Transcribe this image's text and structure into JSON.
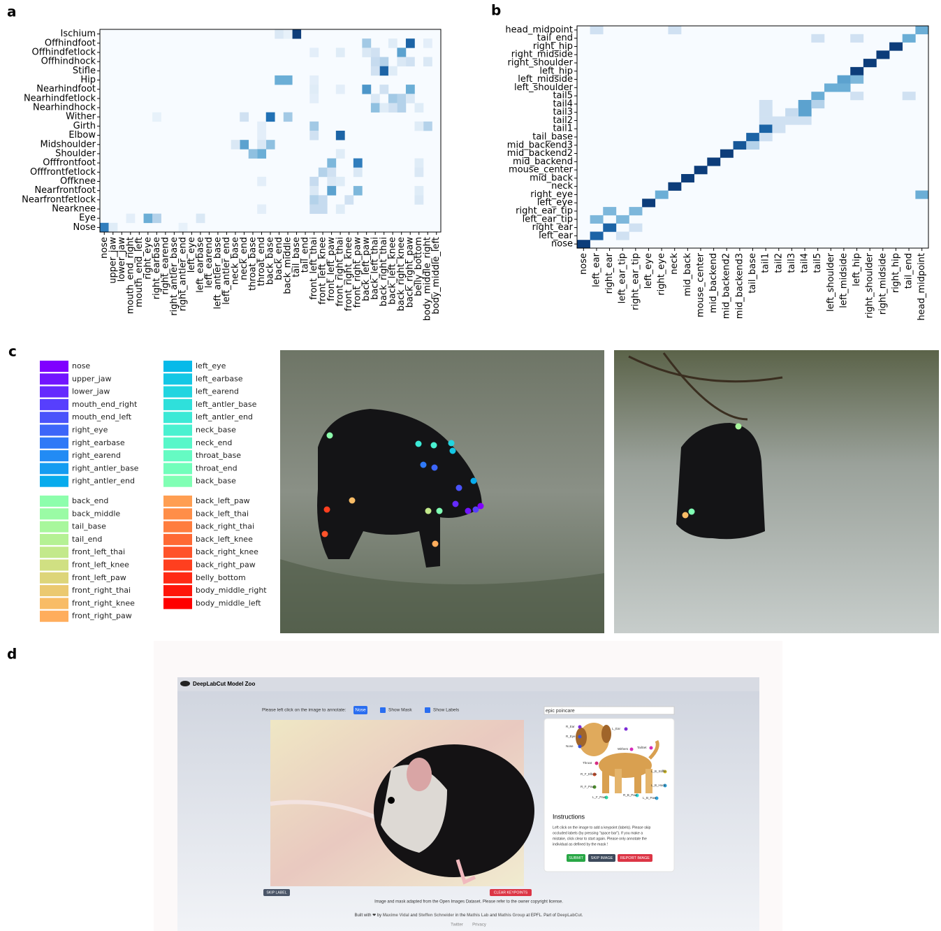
{
  "panel_labels": [
    "a",
    "b",
    "c",
    "d"
  ],
  "chart_data": [
    {
      "type": "heatmap",
      "rows": [
        "Ischium",
        "Offhindfoot",
        "Offhindfetlock",
        "Offhindhock",
        "Stifle",
        "Hip",
        "Nearhindfoot",
        "Nearhindfetlock",
        "Nearhindhock",
        "Wither",
        "Girth",
        "Elbow",
        "Midshoulder",
        "Shoulder",
        "Offfrontfoot",
        "Offfrontfetlock",
        "Offknee",
        "Nearfrontfoot",
        "Nearfrontfetlock",
        "Nearknee",
        "Eye",
        "Nose"
      ],
      "columns": [
        "nose",
        "upper_jaw",
        "lower_jaw",
        "mouth_end_right",
        "mouth_end_left",
        "right_eye",
        "right_earbase",
        "right_earend",
        "right_antler_base",
        "right_antler_end",
        "left_eye",
        "left_earbase",
        "left_earend",
        "left_antler_base",
        "left_antler_end",
        "neck_base",
        "neck_end",
        "throat_base",
        "throat_end",
        "back_base",
        "back_end",
        "back_middle",
        "tail_base",
        "tail_end",
        "front_left_thai",
        "front_left_knee",
        "front_left_paw",
        "front_right_thai",
        "front_right_knee",
        "front_right_paw",
        "back_left_paw",
        "back_left_thai",
        "back_right_thai",
        "back_left_knee",
        "back_right_knee",
        "back_right_paw",
        "belly_bottom",
        "body_middle_right",
        "body_middle_left"
      ],
      "vlim": [
        0,
        1
      ],
      "colormap": [
        "#f7fbff",
        "#c6dbef",
        "#6baed6",
        "#2171b5",
        "#08306b"
      ],
      "cells": [
        [
          0,
          22,
          0.95
        ],
        [
          0,
          20,
          0.15
        ],
        [
          0,
          21,
          0.08
        ],
        [
          1,
          35,
          0.8
        ],
        [
          1,
          30,
          0.35
        ],
        [
          1,
          33,
          0.12
        ],
        [
          1,
          37,
          0.1
        ],
        [
          2,
          34,
          0.55
        ],
        [
          2,
          31,
          0.2
        ],
        [
          2,
          30,
          0.15
        ],
        [
          2,
          27,
          0.12
        ],
        [
          2,
          24,
          0.1
        ],
        [
          3,
          32,
          0.3
        ],
        [
          3,
          31,
          0.25
        ],
        [
          3,
          35,
          0.2
        ],
        [
          3,
          34,
          0.15
        ],
        [
          3,
          37,
          0.15
        ],
        [
          4,
          32,
          0.8
        ],
        [
          4,
          31,
          0.2
        ],
        [
          4,
          33,
          0.12
        ],
        [
          5,
          20,
          0.5
        ],
        [
          5,
          21,
          0.5
        ],
        [
          5,
          24,
          0.1
        ],
        [
          6,
          30,
          0.6
        ],
        [
          6,
          35,
          0.5
        ],
        [
          6,
          32,
          0.2
        ],
        [
          6,
          24,
          0.12
        ],
        [
          6,
          27,
          0.1
        ],
        [
          7,
          33,
          0.35
        ],
        [
          7,
          34,
          0.3
        ],
        [
          7,
          31,
          0.15
        ],
        [
          7,
          35,
          0.15
        ],
        [
          7,
          24,
          0.1
        ],
        [
          8,
          31,
          0.4
        ],
        [
          8,
          34,
          0.3
        ],
        [
          8,
          33,
          0.2
        ],
        [
          8,
          32,
          0.12
        ],
        [
          8,
          36,
          0.12
        ],
        [
          9,
          19,
          0.75
        ],
        [
          9,
          21,
          0.35
        ],
        [
          9,
          16,
          0.2
        ],
        [
          9,
          6,
          0.08
        ],
        [
          10,
          24,
          0.35
        ],
        [
          10,
          37,
          0.3
        ],
        [
          10,
          36,
          0.12
        ],
        [
          10,
          18,
          0.1
        ],
        [
          11,
          27,
          0.8
        ],
        [
          11,
          24,
          0.2
        ],
        [
          11,
          18,
          0.1
        ],
        [
          12,
          16,
          0.55
        ],
        [
          12,
          19,
          0.4
        ],
        [
          12,
          15,
          0.15
        ],
        [
          12,
          18,
          0.15
        ],
        [
          13,
          18,
          0.5
        ],
        [
          13,
          17,
          0.4
        ],
        [
          13,
          27,
          0.12
        ],
        [
          14,
          29,
          0.7
        ],
        [
          14,
          26,
          0.45
        ],
        [
          14,
          36,
          0.12
        ],
        [
          15,
          25,
          0.3
        ],
        [
          15,
          26,
          0.2
        ],
        [
          15,
          29,
          0.15
        ],
        [
          15,
          36,
          0.15
        ],
        [
          16,
          24,
          0.25
        ],
        [
          16,
          26,
          0.15
        ],
        [
          16,
          27,
          0.12
        ],
        [
          16,
          18,
          0.1
        ],
        [
          17,
          26,
          0.55
        ],
        [
          17,
          29,
          0.45
        ],
        [
          17,
          36,
          0.12
        ],
        [
          17,
          24,
          0.15
        ],
        [
          18,
          24,
          0.3
        ],
        [
          18,
          25,
          0.25
        ],
        [
          18,
          28,
          0.2
        ],
        [
          18,
          36,
          0.15
        ],
        [
          19,
          24,
          0.25
        ],
        [
          19,
          25,
          0.25
        ],
        [
          19,
          27,
          0.12
        ],
        [
          19,
          18,
          0.1
        ],
        [
          20,
          5,
          0.5
        ],
        [
          20,
          6,
          0.3
        ],
        [
          20,
          11,
          0.15
        ],
        [
          20,
          3,
          0.1
        ],
        [
          21,
          0,
          0.7
        ],
        [
          21,
          1,
          0.12
        ],
        [
          21,
          9,
          0.08
        ]
      ]
    },
    {
      "type": "heatmap",
      "rows": [
        "head_midpoint",
        "tail_end",
        "right_hip",
        "right_midside",
        "right_shoulder",
        "left_hip",
        "left_midside",
        "left_shoulder",
        "tail5",
        "tail4",
        "tail3",
        "tail2",
        "tail1",
        "tail_base",
        "mid_backend3",
        "mid_backend2",
        "mid_backend",
        "mouse_center",
        "mid_back",
        "neck",
        "right_eye",
        "left_eye",
        "right_ear_tip",
        "left_ear_tip",
        "right_ear",
        "left_ear",
        "nose"
      ],
      "columns": [
        "nose",
        "left_ear",
        "right_ear",
        "left_ear_tip",
        "right_ear_tip",
        "left_eye",
        "right_eye",
        "neck",
        "mid_back",
        "mouse_center",
        "mid_backend",
        "mid_backend2",
        "mid_backend3",
        "tail_base",
        "tail1",
        "tail2",
        "tail3",
        "tail4",
        "tail5",
        "left_shoulder",
        "left_midside",
        "left_hip",
        "right_shoulder",
        "right_midside",
        "right_hip",
        "tail_end",
        "head_midpoint"
      ],
      "vlim": [
        0,
        1
      ],
      "colormap": [
        "#f7fbff",
        "#c6dbef",
        "#6baed6",
        "#2171b5",
        "#08306b"
      ],
      "cells": [
        [
          0,
          26,
          0.5
        ],
        [
          0,
          1,
          0.2
        ],
        [
          0,
          7,
          0.2
        ],
        [
          1,
          25,
          0.5
        ],
        [
          1,
          18,
          0.2
        ],
        [
          1,
          21,
          0.2
        ],
        [
          2,
          24,
          0.95
        ],
        [
          3,
          23,
          0.95
        ],
        [
          4,
          22,
          0.95
        ],
        [
          5,
          21,
          0.95
        ],
        [
          6,
          20,
          0.55
        ],
        [
          6,
          21,
          0.45
        ],
        [
          7,
          19,
          0.5
        ],
        [
          7,
          20,
          0.5
        ],
        [
          8,
          18,
          0.5
        ],
        [
          8,
          21,
          0.2
        ],
        [
          8,
          25,
          0.2
        ],
        [
          9,
          17,
          0.55
        ],
        [
          9,
          18,
          0.3
        ],
        [
          9,
          14,
          0.2
        ],
        [
          10,
          17,
          0.55
        ],
        [
          10,
          16,
          0.25
        ],
        [
          10,
          14,
          0.2
        ],
        [
          11,
          14,
          0.2
        ],
        [
          11,
          15,
          0.2
        ],
        [
          11,
          16,
          0.2
        ],
        [
          11,
          17,
          0.2
        ],
        [
          12,
          14,
          0.8
        ],
        [
          12,
          15,
          0.2
        ],
        [
          13,
          13,
          0.8
        ],
        [
          13,
          14,
          0.2
        ],
        [
          14,
          12,
          0.85
        ],
        [
          14,
          13,
          0.3
        ],
        [
          15,
          11,
          0.95
        ],
        [
          16,
          10,
          0.95
        ],
        [
          17,
          9,
          0.95
        ],
        [
          18,
          8,
          0.95
        ],
        [
          19,
          7,
          0.95
        ],
        [
          20,
          6,
          0.5
        ],
        [
          20,
          26,
          0.5
        ],
        [
          21,
          5,
          0.95
        ],
        [
          22,
          2,
          0.45
        ],
        [
          22,
          4,
          0.45
        ],
        [
          23,
          1,
          0.45
        ],
        [
          23,
          3,
          0.45
        ],
        [
          24,
          2,
          0.8
        ],
        [
          24,
          4,
          0.2
        ],
        [
          25,
          1,
          0.8
        ],
        [
          25,
          3,
          0.2
        ],
        [
          26,
          0,
          0.95
        ]
      ]
    }
  ],
  "panel_c": {
    "legend_groups": [
      [
        {
          "name": "nose",
          "color": "#8000ff"
        },
        {
          "name": "upper_jaw",
          "color": "#7215ff"
        },
        {
          "name": "lower_jaw",
          "color": "#652afe"
        },
        {
          "name": "mouth_end_right",
          "color": "#573ffd"
        },
        {
          "name": "mouth_end_left",
          "color": "#4a53fb"
        },
        {
          "name": "right_eye",
          "color": "#3c66f9"
        },
        {
          "name": "right_earbase",
          "color": "#2f79f7"
        },
        {
          "name": "right_earend",
          "color": "#228bf4"
        },
        {
          "name": "right_antler_base",
          "color": "#149cf1"
        },
        {
          "name": "right_antler_end",
          "color": "#07abed"
        }
      ],
      [
        {
          "name": "back_end",
          "color": "#8dfeac"
        },
        {
          "name": "back_middle",
          "color": "#9afba5"
        },
        {
          "name": "tail_base",
          "color": "#a8f79c"
        },
        {
          "name": "tail_end",
          "color": "#b5f194"
        },
        {
          "name": "front_left_thai",
          "color": "#c3e98b"
        },
        {
          "name": "front_left_knee",
          "color": "#d0e082"
        },
        {
          "name": "front_left_paw",
          "color": "#ddd579"
        },
        {
          "name": "front_right_thai",
          "color": "#ebc970"
        },
        {
          "name": "front_right_knee",
          "color": "#f8bc66"
        },
        {
          "name": "front_right_paw",
          "color": "#ffad5c"
        }
      ],
      [
        {
          "name": "left_eye",
          "color": "#07bae9"
        },
        {
          "name": "left_earbase",
          "color": "#14c7e5"
        },
        {
          "name": "left_earend",
          "color": "#22d5e0"
        },
        {
          "name": "left_antler_base",
          "color": "#2fe0db"
        },
        {
          "name": "left_antler_end",
          "color": "#3ce9d6"
        },
        {
          "name": "neck_base",
          "color": "#4af1d0"
        },
        {
          "name": "neck_end",
          "color": "#57f7c9"
        },
        {
          "name": "throat_base",
          "color": "#65fbc3"
        },
        {
          "name": "throat_end",
          "color": "#72febb"
        },
        {
          "name": "back_base",
          "color": "#80ffb4"
        }
      ],
      [
        {
          "name": "back_left_paw",
          "color": "#ff9e52"
        },
        {
          "name": "back_left_thai",
          "color": "#ff8e48"
        },
        {
          "name": "back_right_thai",
          "color": "#ff7d3e"
        },
        {
          "name": "back_left_knee",
          "color": "#ff6934"
        },
        {
          "name": "back_right_knee",
          "color": "#ff532a"
        },
        {
          "name": "back_right_paw",
          "color": "#ff3f1f"
        },
        {
          "name": "belly_bottom",
          "color": "#ff2a15"
        },
        {
          "name": "body_middle_right",
          "color": "#ff150a"
        },
        {
          "name": "body_middle_left",
          "color": "#ff0000"
        }
      ]
    ]
  },
  "panel_d": {
    "app_title": "DeepLabCut Model Zoo",
    "prompt": "Please left click on the image to annotate:",
    "selected_keypoint": "Nose",
    "toggles": [
      "Show Mask",
      "Show Labels"
    ],
    "username": "epic poincare",
    "dog_labels": [
      "R_Ear",
      "L_Ear",
      "R_Eye",
      "Nose",
      "Withers",
      "TailSet",
      "Throat",
      "R_F_Elbow",
      "L_B_Stiffle",
      "R_F_Paw",
      "L_F_Paw",
      "R_B_Paw",
      "L_B_Hock",
      "L_B_Paw"
    ],
    "instructions_title": "Instructions",
    "instructions_lines": [
      "Left click on the image to add a keypoint (labels). Please skip",
      "occluded labels (by pressing \"space bar\"). If you make a",
      "mistake, click clear to start again. Please only annotate the",
      "individual as defined by the mask !"
    ],
    "buttons": [
      "SUBMIT",
      "SKIP IMAGE",
      "REPORT IMAGE"
    ],
    "skip_label": "SKIP LABEL",
    "clear_keypoints": "CLEAR KEYPOINTS",
    "image_credit": "Image and mask adapted from the Open Images Dataset. Please refer to the owner copyright license.",
    "footer": [
      {
        "text": "Built with ❤ by ",
        "link": false
      },
      {
        "text": "Maxime Vidal",
        "link": true
      },
      {
        "text": " and ",
        "link": false
      },
      {
        "text": "Steffen Schneider",
        "link": true
      },
      {
        "text": " in the ",
        "link": false
      },
      {
        "text": "Mathis Lab",
        "link": true
      },
      {
        "text": " and ",
        "link": false
      },
      {
        "text": "Mathis Group",
        "link": true
      },
      {
        "text": " at EPFL. Part of ",
        "link": false
      },
      {
        "text": "DeepLabCut",
        "link": true
      },
      {
        "text": ".",
        "link": false
      }
    ],
    "footer_links": [
      "Twitter",
      "Privacy"
    ]
  }
}
